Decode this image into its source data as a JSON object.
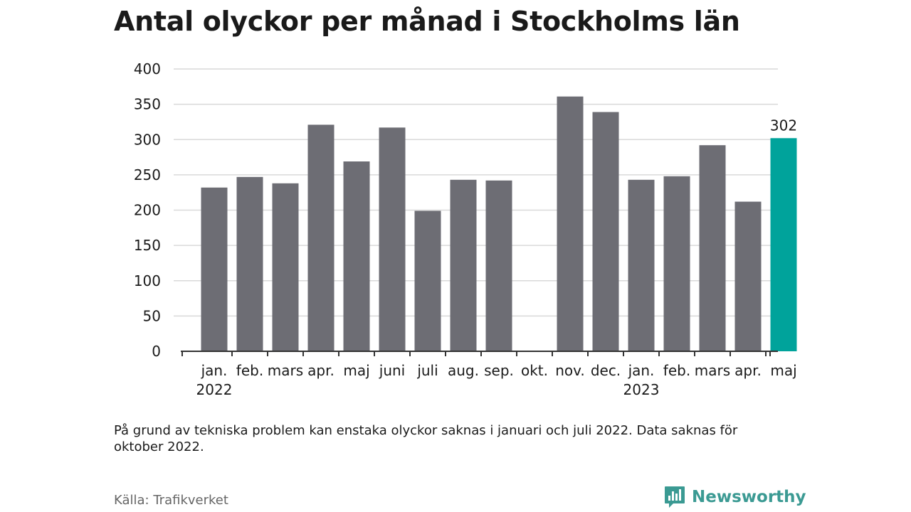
{
  "title": "Antal olyckor per månad i Stockholms län",
  "note": "På grund av tekniska problem kan enstaka olyckor saknas i januari och juli 2022. Data saknas för oktober 2022.",
  "source": "Källa: Trafikverket",
  "brand": {
    "name": "Newsworthy",
    "icon": "newsworthy-logo-icon"
  },
  "colors": {
    "bar": "#6d6d74",
    "highlight": "#00a39b",
    "grid": "#d9d9d9",
    "axis": "#333333",
    "text": "#1a1a1a"
  },
  "chart_data": {
    "type": "bar",
    "title": "Antal olyckor per månad i Stockholms län",
    "xlabel": "",
    "ylabel": "",
    "ylim": [
      0,
      400
    ],
    "yticks": [
      0,
      50,
      100,
      150,
      200,
      250,
      300,
      350,
      400
    ],
    "grid": true,
    "categories": [
      "jan.",
      "feb.",
      "mars",
      "apr.",
      "maj",
      "juni",
      "juli",
      "aug.",
      "sep.",
      "okt.",
      "nov.",
      "dec.",
      "jan.",
      "feb.",
      "mars",
      "apr.",
      "maj"
    ],
    "year_labels": [
      {
        "index": 0,
        "label": "2022"
      },
      {
        "index": 12,
        "label": "2023"
      }
    ],
    "values": [
      232,
      247,
      238,
      321,
      269,
      317,
      199,
      243,
      242,
      null,
      361,
      339,
      243,
      248,
      292,
      212,
      302
    ],
    "highlight_index": 16,
    "data_labels": [
      {
        "index": 16,
        "label": "302"
      }
    ]
  }
}
